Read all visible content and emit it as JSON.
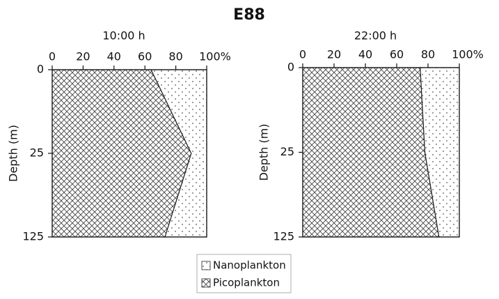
{
  "title": "E88",
  "chart_data": [
    {
      "type": "area",
      "subtitle": "10:00 h",
      "y_label": "Depth (m)",
      "categories": [
        "0",
        "25",
        "125"
      ],
      "xlim": [
        0,
        100
      ],
      "xticks": [
        0,
        20,
        40,
        60,
        80,
        {
          "value": 100,
          "label": "100%"
        }
      ],
      "series": [
        {
          "name": "Picoplankton",
          "color": "#222222",
          "pattern": "crosshatch",
          "values": [
            64,
            90,
            73
          ]
        },
        {
          "name": "Nanoplankton",
          "color": "#222222",
          "pattern": "dots",
          "values": [
            36,
            10,
            27
          ]
        }
      ]
    },
    {
      "type": "area",
      "subtitle": "22:00 h",
      "y_label": "Depth (m)",
      "categories": [
        "0",
        "25",
        "125"
      ],
      "xlim": [
        0,
        100
      ],
      "xticks": [
        0,
        20,
        40,
        60,
        80,
        {
          "value": 100,
          "label": "100%"
        }
      ],
      "series": [
        {
          "name": "Picoplankton",
          "color": "#222222",
          "pattern": "crosshatch",
          "values": [
            75,
            78,
            87
          ]
        },
        {
          "name": "Nanoplankton",
          "color": "#222222",
          "pattern": "dots",
          "values": [
            25,
            22,
            13
          ]
        }
      ]
    }
  ]
}
